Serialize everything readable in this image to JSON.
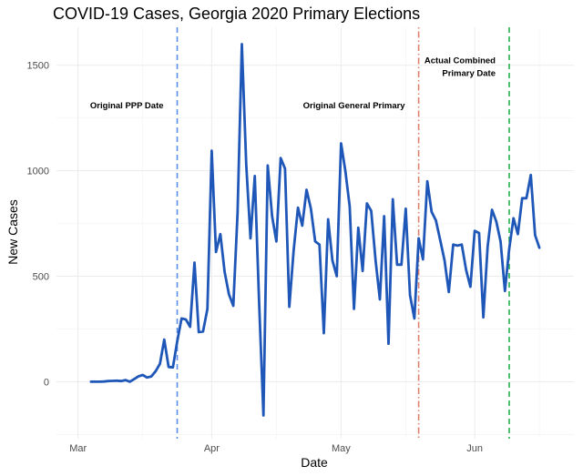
{
  "chart_data": {
    "type": "line",
    "title": "COVID-19 Cases, Georgia 2020 Primary Elections",
    "xlabel": "Date",
    "ylabel": "New Cases",
    "x_axis": {
      "kind": "date",
      "range": [
        "2020-02-25",
        "2020-06-24"
      ],
      "ticks": [
        {
          "date": "2020-03-01",
          "label": "Mar"
        },
        {
          "date": "2020-04-01",
          "label": "Apr"
        },
        {
          "date": "2020-05-01",
          "label": "May"
        },
        {
          "date": "2020-06-01",
          "label": "Jun"
        }
      ],
      "minor_ticks": [
        "2020-03-16",
        "2020-04-16",
        "2020-05-16",
        "2020-06-16"
      ]
    },
    "y_axis": {
      "range": [
        -270,
        1680
      ],
      "ticks": [
        0,
        500,
        1000,
        1500
      ],
      "minor_ticks": [
        -250,
        250,
        750,
        1250
      ]
    },
    "grid": true,
    "legend": "none",
    "series": [
      {
        "color": "#1f57b8",
        "points": [
          [
            "2020-03-04",
            0
          ],
          [
            "2020-03-05",
            0
          ],
          [
            "2020-03-06",
            0
          ],
          [
            "2020-03-07",
            1
          ],
          [
            "2020-03-08",
            3
          ],
          [
            "2020-03-09",
            4
          ],
          [
            "2020-03-10",
            5
          ],
          [
            "2020-03-11",
            3
          ],
          [
            "2020-03-12",
            8
          ],
          [
            "2020-03-13",
            0
          ],
          [
            "2020-03-14",
            12
          ],
          [
            "2020-03-15",
            25
          ],
          [
            "2020-03-16",
            32
          ],
          [
            "2020-03-17",
            20
          ],
          [
            "2020-03-18",
            25
          ],
          [
            "2020-03-19",
            50
          ],
          [
            "2020-03-20",
            85
          ],
          [
            "2020-03-21",
            200
          ],
          [
            "2020-03-22",
            70
          ],
          [
            "2020-03-23",
            68
          ],
          [
            "2020-03-24",
            190
          ],
          [
            "2020-03-25",
            300
          ],
          [
            "2020-03-26",
            295
          ],
          [
            "2020-03-27",
            260
          ],
          [
            "2020-03-28",
            565
          ],
          [
            "2020-03-29",
            235
          ],
          [
            "2020-03-30",
            238
          ],
          [
            "2020-03-31",
            345
          ],
          [
            "2020-04-01",
            1095
          ],
          [
            "2020-04-02",
            615
          ],
          [
            "2020-04-03",
            700
          ],
          [
            "2020-04-04",
            520
          ],
          [
            "2020-04-05",
            415
          ],
          [
            "2020-04-06",
            360
          ],
          [
            "2020-04-07",
            800
          ],
          [
            "2020-04-08",
            1600
          ],
          [
            "2020-04-09",
            1030
          ],
          [
            "2020-04-10",
            680
          ],
          [
            "2020-04-11",
            975
          ],
          [
            "2020-04-12",
            370
          ],
          [
            "2020-04-13",
            -160
          ],
          [
            "2020-04-14",
            1025
          ],
          [
            "2020-04-15",
            785
          ],
          [
            "2020-04-16",
            665
          ],
          [
            "2020-04-17",
            1060
          ],
          [
            "2020-04-18",
            1010
          ],
          [
            "2020-04-19",
            355
          ],
          [
            "2020-04-20",
            620
          ],
          [
            "2020-04-21",
            825
          ],
          [
            "2020-04-22",
            740
          ],
          [
            "2020-04-23",
            910
          ],
          [
            "2020-04-24",
            820
          ],
          [
            "2020-04-25",
            665
          ],
          [
            "2020-04-26",
            650
          ],
          [
            "2020-04-27",
            230
          ],
          [
            "2020-04-28",
            770
          ],
          [
            "2020-04-29",
            575
          ],
          [
            "2020-04-30",
            500
          ],
          [
            "2020-05-01",
            1130
          ],
          [
            "2020-05-02",
            1000
          ],
          [
            "2020-05-03",
            830
          ],
          [
            "2020-05-04",
            345
          ],
          [
            "2020-05-05",
            730
          ],
          [
            "2020-05-06",
            525
          ],
          [
            "2020-05-07",
            845
          ],
          [
            "2020-05-08",
            810
          ],
          [
            "2020-05-09",
            575
          ],
          [
            "2020-05-10",
            390
          ],
          [
            "2020-05-11",
            785
          ],
          [
            "2020-05-12",
            180
          ],
          [
            "2020-05-13",
            865
          ],
          [
            "2020-05-14",
            555
          ],
          [
            "2020-05-15",
            555
          ],
          [
            "2020-05-16",
            820
          ],
          [
            "2020-05-17",
            410
          ],
          [
            "2020-05-18",
            300
          ],
          [
            "2020-05-19",
            680
          ],
          [
            "2020-05-20",
            580
          ],
          [
            "2020-05-21",
            950
          ],
          [
            "2020-05-22",
            805
          ],
          [
            "2020-05-23",
            765
          ],
          [
            "2020-05-24",
            670
          ],
          [
            "2020-05-25",
            575
          ],
          [
            "2020-05-26",
            425
          ],
          [
            "2020-05-27",
            650
          ],
          [
            "2020-05-28",
            645
          ],
          [
            "2020-05-29",
            650
          ],
          [
            "2020-05-30",
            530
          ],
          [
            "2020-05-31",
            450
          ],
          [
            "2020-06-01",
            715
          ],
          [
            "2020-06-02",
            705
          ],
          [
            "2020-06-03",
            305
          ],
          [
            "2020-06-04",
            640
          ],
          [
            "2020-06-05",
            815
          ],
          [
            "2020-06-06",
            760
          ],
          [
            "2020-06-07",
            665
          ],
          [
            "2020-06-08",
            430
          ],
          [
            "2020-06-09",
            630
          ],
          [
            "2020-06-10",
            775
          ],
          [
            "2020-06-11",
            700
          ],
          [
            "2020-06-12",
            870
          ],
          [
            "2020-06-13",
            870
          ],
          [
            "2020-06-14",
            980
          ],
          [
            "2020-06-15",
            695
          ],
          [
            "2020-06-16",
            635
          ]
        ]
      }
    ],
    "vlines": [
      {
        "date": "2020-03-24",
        "label": "Original PPP Date",
        "color": "#5b8ee8",
        "dash": "dashed"
      },
      {
        "date": "2020-05-19",
        "label": "Original General Primary",
        "color": "#e0806e",
        "dash": "dotdash"
      },
      {
        "date": "2020-06-09",
        "label": "Actual Combined Primary Date",
        "color": "#22b14c",
        "dash": "dashed"
      }
    ],
    "annotations": [
      {
        "lines": [
          "Original PPP Date"
        ],
        "date": "2020-03-24",
        "value": 1295,
        "anchor": "end"
      },
      {
        "lines": [
          "Original General Primary"
        ],
        "date": "2020-05-19",
        "value": 1295,
        "anchor": "end"
      },
      {
        "lines": [
          "Actual Combined",
          "Primary Date"
        ],
        "date": "2020-06-09",
        "value": 1510,
        "anchor": "end"
      }
    ]
  }
}
